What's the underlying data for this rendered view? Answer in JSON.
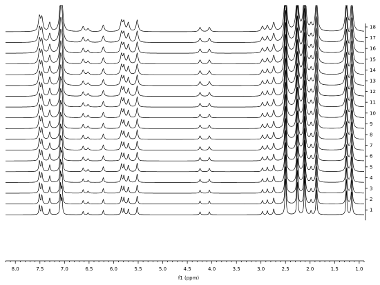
{
  "chart_data": {
    "type": "line",
    "title": "",
    "xlabel": "f1 (ppm)",
    "ylabel": "",
    "xlim": [
      8.2,
      0.9
    ],
    "x_reversed": true,
    "grid": false,
    "x_ticks": [
      "8.0",
      "7.5",
      "7.0",
      "6.5",
      "6.0",
      "5.5",
      "5.0",
      "4.5",
      "4.0",
      "3.5",
      "3.0",
      "2.5",
      "2.0",
      "1.5",
      "1.0"
    ],
    "trace_labels": [
      "1",
      "2",
      "3",
      "4",
      "5",
      "6",
      "7",
      "8",
      "9",
      "10",
      "11",
      "12",
      "13",
      "14",
      "15",
      "16",
      "17",
      "18"
    ],
    "series": [
      {
        "values": [
          {
            "ppm": 7.51,
            "height": 1.0
          },
          {
            "ppm": 7.46,
            "height": 0.9
          },
          {
            "ppm": 7.3,
            "height": 0.6
          },
          {
            "ppm": 7.08,
            "height": 2.0
          },
          {
            "ppm": 7.05,
            "height": 1.6
          },
          {
            "ppm": 6.62,
            "height": 0.35
          },
          {
            "ppm": 6.52,
            "height": 0.2
          },
          {
            "ppm": 6.21,
            "height": 0.45
          },
          {
            "ppm": 5.84,
            "height": 0.7
          },
          {
            "ppm": 5.79,
            "height": 0.65
          },
          {
            "ppm": 5.7,
            "height": 0.6
          },
          {
            "ppm": 5.52,
            "height": 0.8
          },
          {
            "ppm": 4.24,
            "height": 0.3
          },
          {
            "ppm": 4.05,
            "height": 0.3
          },
          {
            "ppm": 2.97,
            "height": 0.35
          },
          {
            "ppm": 2.87,
            "height": 0.4
          },
          {
            "ppm": 2.74,
            "height": 0.6
          },
          {
            "ppm": 2.5,
            "height": 4.0
          },
          {
            "ppm": 2.26,
            "height": 3.5
          },
          {
            "ppm": 2.11,
            "height": 4.0
          },
          {
            "ppm": 1.98,
            "height": 0.4
          },
          {
            "ppm": 1.87,
            "height": 2.6
          },
          {
            "ppm": 1.26,
            "height": 2.5
          },
          {
            "ppm": 1.15,
            "height": 2.5
          }
        ]
      }
    ]
  }
}
